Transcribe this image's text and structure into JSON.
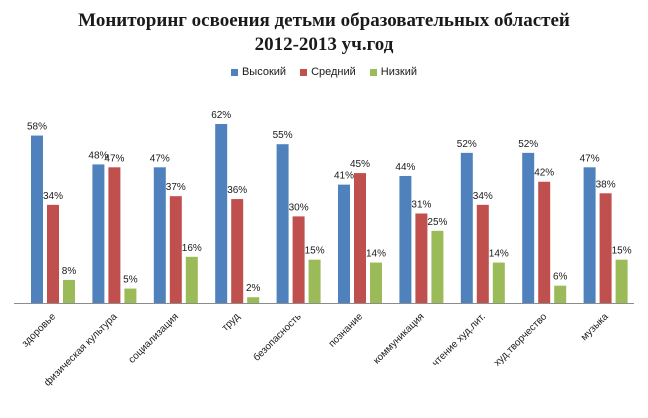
{
  "chart_data": {
    "type": "bar",
    "title": "Мониторинг освоения детьми образовательных областей",
    "subtitle": "2012-2013 уч.год",
    "categories": [
      "здоровье",
      "физическая культура",
      "социализация",
      "труд",
      "безопасность",
      "познание",
      "коммуникация",
      "чтение худ.лит.",
      "худ.творчество",
      "музыка"
    ],
    "series": [
      {
        "name": "Высокий",
        "color": "#4f81bd",
        "values": [
          58,
          48,
          47,
          62,
          55,
          41,
          44,
          52,
          52,
          47
        ]
      },
      {
        "name": "Средний",
        "color": "#c0504d",
        "values": [
          34,
          47,
          37,
          36,
          30,
          45,
          31,
          34,
          42,
          38
        ]
      },
      {
        "name": "Низкий",
        "color": "#9bbb59",
        "values": [
          8,
          5,
          16,
          2,
          15,
          14,
          25,
          14,
          6,
          15
        ]
      }
    ],
    "value_suffix": "%",
    "ylim": [
      0,
      62
    ],
    "legend_position": "top",
    "grid": false
  }
}
